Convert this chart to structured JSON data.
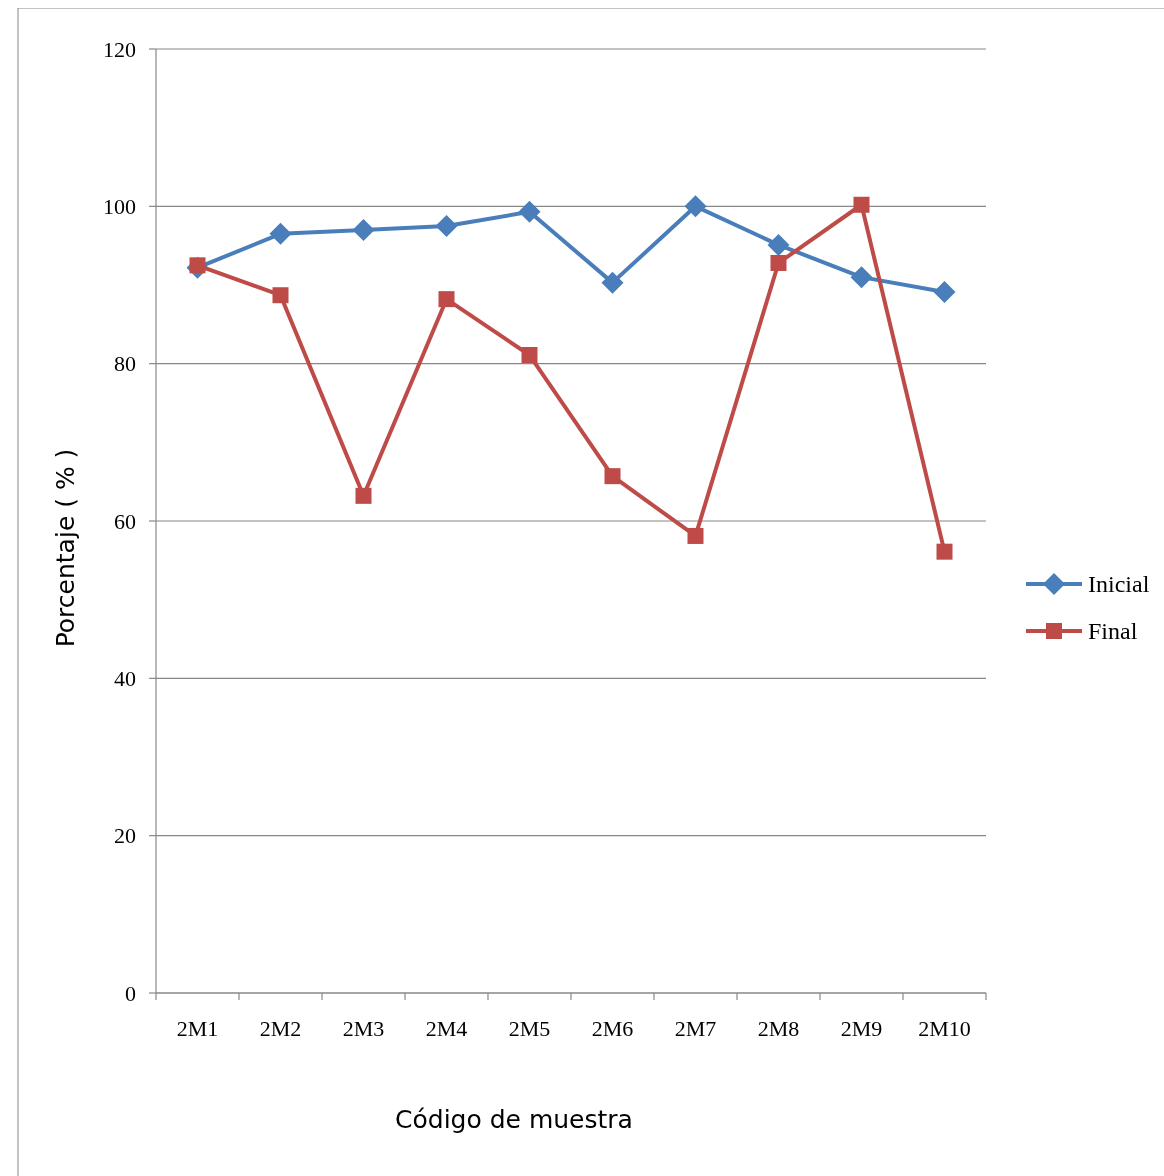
{
  "chart_data": {
    "type": "line",
    "xlabel": "Código de muestra",
    "ylabel": "Porcentaje ( % )",
    "categories": [
      "2M1",
      "2M2",
      "2M3",
      "2M4",
      "2M5",
      "2M6",
      "2M7",
      "2M8",
      "2M9",
      "2M10"
    ],
    "series": [
      {
        "name": "Inicial",
        "color": "#4a7ebb",
        "marker": "diamond",
        "values": [
          92.2,
          96.5,
          97.0,
          97.5,
          99.3,
          90.3,
          100,
          95.1,
          91.0,
          89.1
        ]
      },
      {
        "name": "Final",
        "color": "#be4b48",
        "marker": "square",
        "values": [
          92.5,
          88.7,
          63.2,
          88.2,
          81.1,
          65.7,
          58.1,
          92.8,
          100.2,
          56.1
        ]
      }
    ],
    "ylim": [
      0,
      120
    ],
    "yticks": [
      0,
      20,
      40,
      60,
      80,
      100,
      120
    ],
    "grid": "y",
    "legend": "right",
    "line_style": "solid"
  }
}
